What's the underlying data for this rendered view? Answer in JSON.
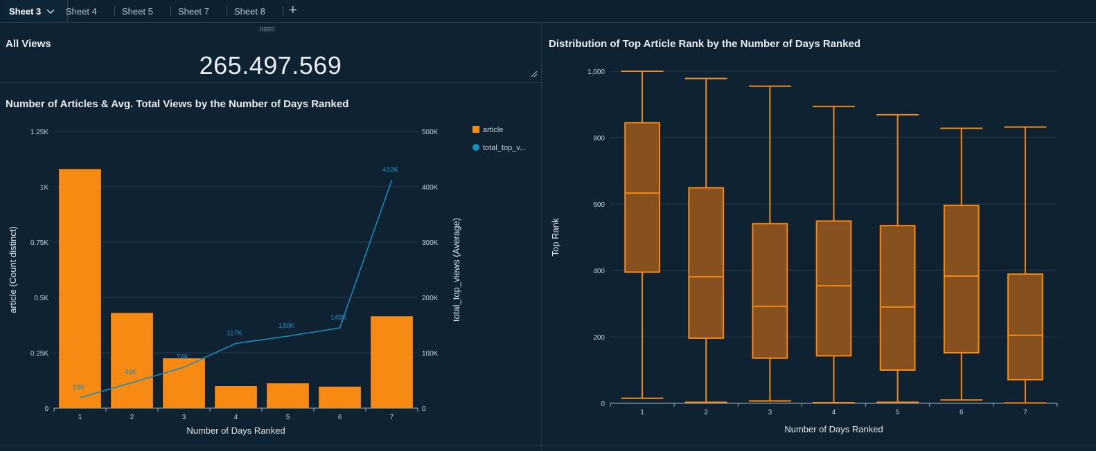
{
  "tabs": [
    {
      "label": "Sheet 3",
      "active": true
    },
    {
      "label": "Sheet 4"
    },
    {
      "label": "Sheet 5"
    },
    {
      "label": "Sheet 7"
    },
    {
      "label": "Sheet 8"
    }
  ],
  "add_tab_icon": "plus-icon",
  "kpi": {
    "title": "All Views",
    "value": "265.497.569"
  },
  "colors": {
    "bar": "#f78a12",
    "line": "#1a8cbf",
    "box_fill": "#86511f",
    "box_stroke": "#f78a12",
    "bg": "#0e2231"
  },
  "chart_data": [
    {
      "type": "bar",
      "title": "Number of Articles & Avg. Total Views by the Number of Days Ranked",
      "xlabel": "Number of Days Ranked",
      "ylabel": "article (Count distinct)",
      "y2label": "total_top_views (Average)",
      "categories": [
        "1",
        "2",
        "3",
        "4",
        "5",
        "6",
        "7"
      ],
      "series": [
        {
          "name": "article",
          "type": "bar",
          "values": [
            1080,
            430,
            225,
            100,
            112,
            97,
            415
          ]
        },
        {
          "name": "total_top_v...",
          "type": "line",
          "axis": "right",
          "values": [
            19000,
            46000,
            74000,
            117000,
            130000,
            145000,
            412000
          ],
          "labels": [
            "19K",
            "46K",
            "74K",
            "117K",
            "130K",
            "145K",
            "412K"
          ]
        }
      ],
      "ylim": [
        0,
        1250
      ],
      "y2lim": [
        0,
        500000
      ],
      "yticks": [
        "0",
        "0.25K",
        "0.5K",
        "0.75K",
        "1K",
        "1.25K"
      ],
      "y2ticks": [
        "0",
        "100K",
        "200K",
        "300K",
        "400K",
        "500K"
      ],
      "legend": "top-right",
      "grid": true
    },
    {
      "type": "box",
      "title": "Distribution of Top Article Rank by the Number of Days Ranked",
      "xlabel": "Number of Days Ranked",
      "ylabel": "Top Rank",
      "categories": [
        "1",
        "2",
        "3",
        "4",
        "5",
        "6",
        "7"
      ],
      "boxes": [
        {
          "min": 15,
          "q1": 395,
          "median": 633,
          "q3": 845,
          "max": 1000
        },
        {
          "min": 3,
          "q1": 196,
          "median": 381,
          "q3": 649,
          "max": 978
        },
        {
          "min": 7,
          "q1": 136,
          "median": 292,
          "q3": 541,
          "max": 955
        },
        {
          "min": 2,
          "q1": 143,
          "median": 354,
          "q3": 549,
          "max": 894
        },
        {
          "min": 3,
          "q1": 100,
          "median": 290,
          "q3": 535,
          "max": 869
        },
        {
          "min": 10,
          "q1": 152,
          "median": 383,
          "q3": 596,
          "max": 828
        },
        {
          "min": 1,
          "q1": 71,
          "median": 205,
          "q3": 389,
          "max": 832
        }
      ],
      "ylim": [
        0,
        1000
      ],
      "yticks": [
        "0",
        "200",
        "400",
        "600",
        "800",
        "1,000"
      ],
      "grid": true
    }
  ]
}
